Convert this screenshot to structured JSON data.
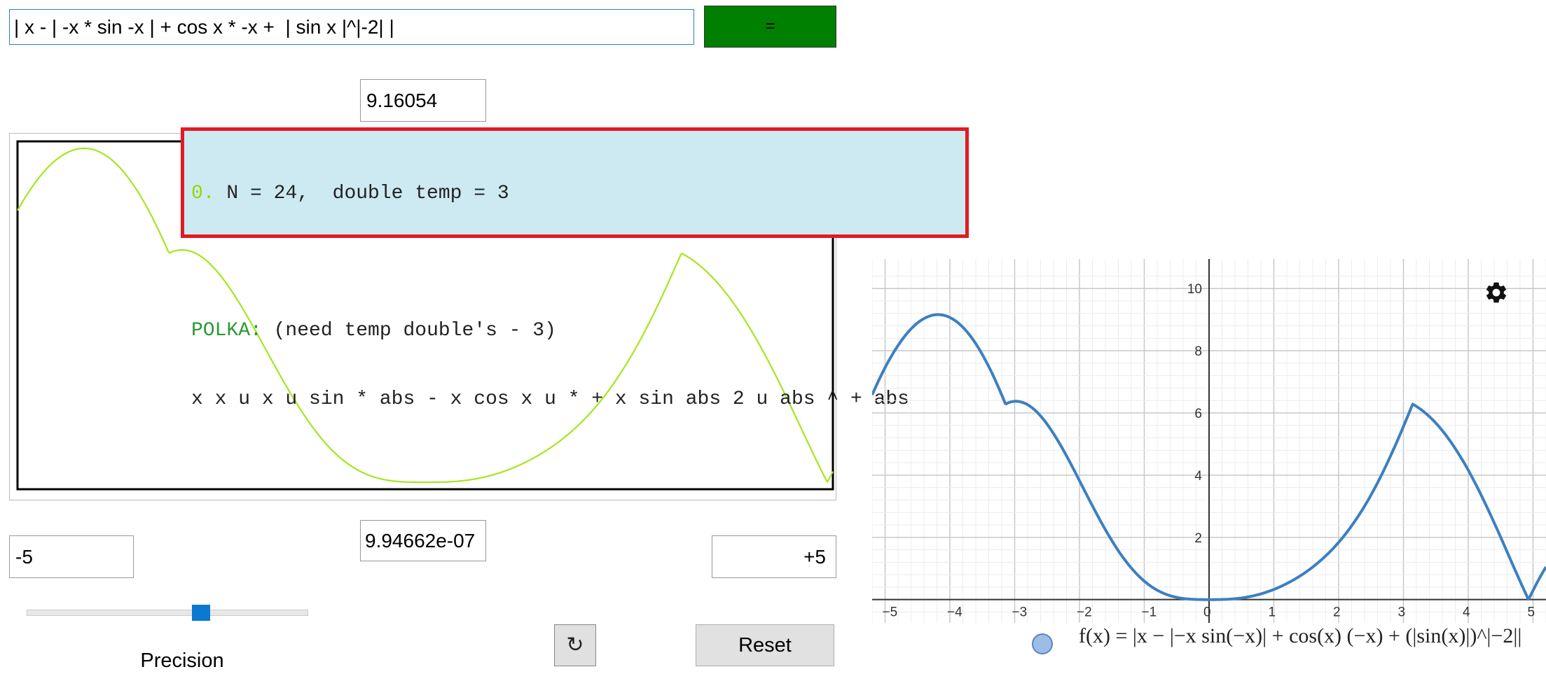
{
  "formula_input": {
    "value": "| x - | -x * sin -x | + cos x * -x +  | sin x |^|-2| |"
  },
  "evaluate_button": {
    "label": "="
  },
  "max_value": "9.16054",
  "min_value": "9.94662e-07",
  "x_min": "-5",
  "x_max": "+5",
  "info_panel": {
    "index": "0.",
    "summary": " N = 24,  double temp = 3",
    "polka_label": "POLKA:",
    "polka_note": " (need temp double's - 3)",
    "rpn": "x x u x u sin * abs - x cos x u * + x sin abs 2 u abs ^ + abs"
  },
  "precision": {
    "label": "Precision",
    "slider_value": 0.62
  },
  "refresh_button": {
    "label": "↻"
  },
  "reset_button": {
    "label": "Reset"
  },
  "graph": {
    "x_ticks": [
      "−5",
      "−4",
      "−3",
      "−2",
      "−1",
      "0",
      "1",
      "2",
      "3",
      "4",
      "5"
    ],
    "y_ticks": [
      "2",
      "4",
      "6",
      "8",
      "10"
    ],
    "legend": "f(x) = |x − |−x sin(−x)| + cos(x) (−x) + (|sin(x)|)^|−2||"
  },
  "colors": {
    "equals_button": "#008000",
    "plot_curve": "#a6e61f",
    "graph_curve": "#3d7fc1",
    "info_bg": "#cdeaf2",
    "info_border": "#e21b23"
  },
  "icons": {
    "settings": "gear-icon",
    "refresh": "refresh-icon"
  }
}
